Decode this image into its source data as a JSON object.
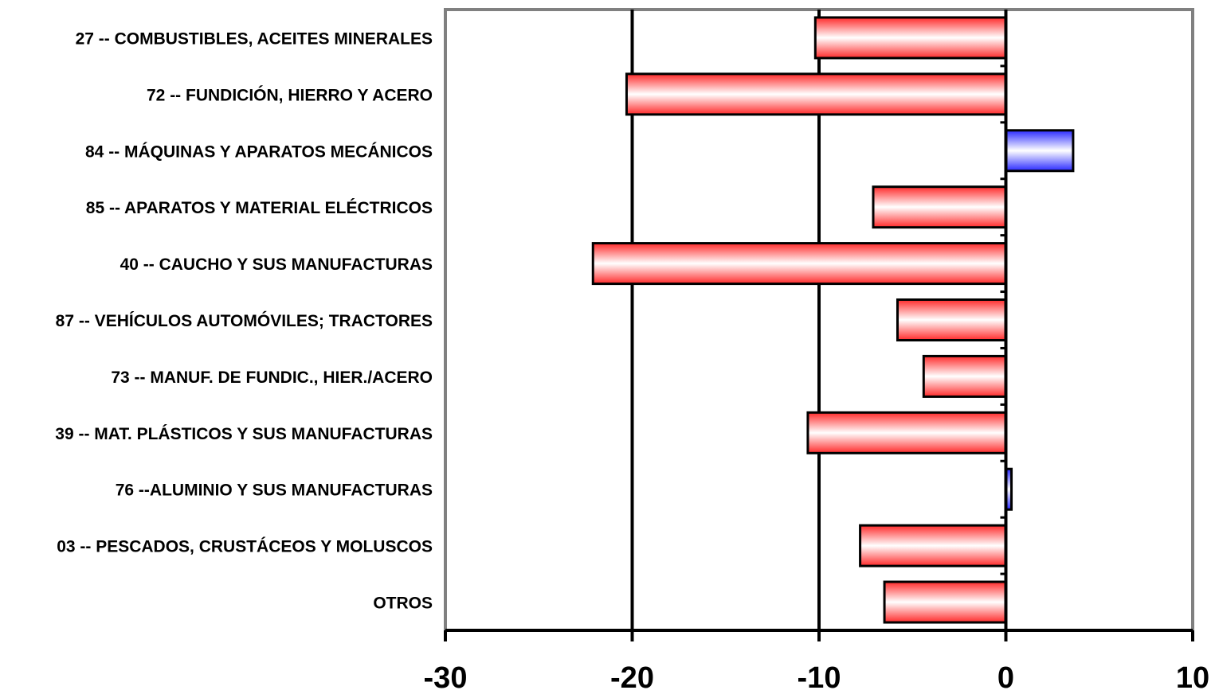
{
  "chart_data": {
    "type": "bar",
    "orientation": "horizontal",
    "categories": [
      "27 -- COMBUSTIBLES, ACEITES MINERALES",
      "72 -- FUNDICIÓN, HIERRO Y ACERO",
      "84 -- MÁQUINAS Y APARATOS MECÁNICOS",
      "85 -- APARATOS Y MATERIAL ELÉCTRICOS",
      "40 -- CAUCHO Y SUS MANUFACTURAS",
      "87 -- VEHÍCULOS AUTOMÓVILES; TRACTORES",
      "73 -- MANUF. DE FUNDIC., HIER./ACERO",
      "39 -- MAT. PLÁSTICOS Y SUS MANUFACTURAS",
      "76 --ALUMINIO Y SUS MANUFACTURAS",
      "03 -- PESCADOS, CRUSTÁCEOS Y MOLUSCOS",
      "OTROS"
    ],
    "values": [
      -10.2,
      -20.3,
      3.6,
      -7.1,
      -22.1,
      -5.8,
      -4.4,
      -10.6,
      0.3,
      -7.8,
      -6.5
    ],
    "xlim": [
      -30,
      10
    ],
    "x_ticks": [
      "-30",
      "-20",
      "-10",
      "0",
      "10"
    ],
    "grid": "vertical",
    "legend": "none",
    "colors": {
      "negative": "#ff2a2a",
      "negative_mid": "#ffffff",
      "positive": "#2a2aff",
      "positive_mid": "#ffffff",
      "bar_border": "#000000",
      "plot_border": "#808080",
      "grid": "#000000"
    }
  }
}
